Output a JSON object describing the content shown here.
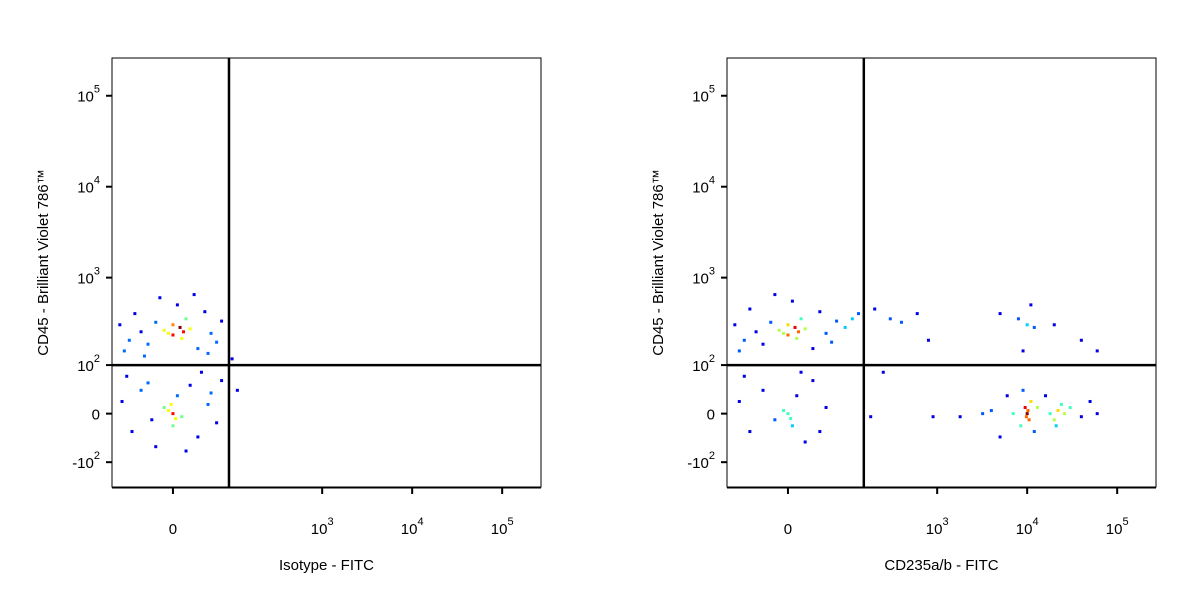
{
  "chart_data": [
    {
      "type": "scatter",
      "scale": "biexponential",
      "x_label": "Isotype - FITC",
      "y_label": "CD45 - Brilliant Violet 786™",
      "xlim": [
        -100,
        270000
      ],
      "ylim": [
        -200,
        260000
      ],
      "xticks": [
        0,
        {
          "value": 1000,
          "label": "10",
          "exponent": "3"
        },
        {
          "value": 10000,
          "label": "10",
          "exponent": "4"
        },
        {
          "value": 100000,
          "label": "10",
          "exponent": "5"
        }
      ],
      "yticks": [
        {
          "value": -100,
          "label": "-10",
          "exponent": "2"
        },
        0,
        {
          "value": 100,
          "label": "10",
          "exponent": "2"
        },
        {
          "value": 1000,
          "label": "10",
          "exponent": "3"
        },
        {
          "value": 10000,
          "label": "10",
          "exponent": "4"
        },
        {
          "value": 100000,
          "label": "10",
          "exponent": "5"
        }
      ],
      "gates": {
        "x": 87,
        "y": 100
      },
      "series": [
        {
          "x": [
            -80,
            -60,
            -50,
            -40,
            -30,
            -20,
            -10,
            0,
            0,
            5,
            10,
            15,
            20,
            30,
            40,
            50,
            60,
            70,
            -70,
            -15,
            25,
            -35,
            45,
            8,
            -5,
            12,
            -75,
            -55,
            -40,
            -25,
            -10,
            0,
            0,
            5,
            10,
            20,
            30,
            45,
            60,
            70,
            -65,
            -20,
            15,
            35,
            -5,
            3,
            -2,
            50,
            -30,
            95,
            110
          ],
          "y": [
            300,
            200,
            400,
            250,
            180,
            320,
            260,
            230,
            300,
            500,
            210,
            350,
            270,
            160,
            420,
            240,
            190,
            330,
            150,
            600,
            650,
            130,
            140,
            280,
            240,
            250,
            20,
            -30,
            40,
            -10,
            10,
            0,
            -20,
            30,
            -5,
            50,
            -40,
            15,
            -15,
            60,
            70,
            -60,
            -70,
            80,
            5,
            -8,
            15,
            35,
            55,
            120,
            40
          ]
        }
      ]
    },
    {
      "type": "scatter",
      "scale": "biexponential",
      "x_label": "CD235a/b - FITC",
      "y_label": "CD45 - Brilliant Violet 786™",
      "xlim": [
        -100,
        270000
      ],
      "ylim": [
        -200,
        260000
      ],
      "xticks": [
        0,
        {
          "value": 1000,
          "label": "10",
          "exponent": "3"
        },
        {
          "value": 10000,
          "label": "10",
          "exponent": "4"
        },
        {
          "value": 100000,
          "label": "10",
          "exponent": "5"
        }
      ],
      "yticks": [
        {
          "value": -100,
          "label": "-10",
          "exponent": "2"
        },
        0,
        {
          "value": 100,
          "label": "10",
          "exponent": "2"
        },
        {
          "value": 1000,
          "label": "10",
          "exponent": "3"
        },
        {
          "value": 10000,
          "label": "10",
          "exponent": "4"
        },
        {
          "value": 100000,
          "label": "10",
          "exponent": "5"
        }
      ],
      "gates": {
        "x": 150,
        "y": 100
      },
      "series": [
        {
          "x": [
            -80,
            -60,
            -50,
            -40,
            -30,
            -20,
            -10,
            0,
            0,
            5,
            10,
            15,
            20,
            30,
            40,
            50,
            60,
            70,
            -70,
            90,
            110,
            130,
            -5,
            8,
            12,
            -15,
            -70,
            -50,
            -30,
            -15,
            0,
            5,
            10,
            20,
            30,
            50,
            -60,
            -5,
            3,
            40,
            15,
            200,
            300,
            400,
            600,
            800,
            180,
            900,
            1800,
            3200,
            250,
            7000,
            8500,
            9500,
            10000,
            10500,
            11000,
            12000,
            9000,
            10200,
            9800,
            6000,
            13000,
            5000,
            4000,
            18000,
            20000,
            22000,
            24000,
            21000,
            26000,
            30000,
            40000,
            50000,
            60000,
            16000,
            5000,
            8000,
            10000,
            12000,
            20000,
            40000,
            60000,
            9000,
            11000
          ],
          "y": [
            300,
            200,
            450,
            250,
            180,
            320,
            260,
            230,
            300,
            550,
            210,
            350,
            270,
            160,
            420,
            240,
            190,
            330,
            150,
            280,
            350,
            400,
            240,
            280,
            250,
            650,
            20,
            -30,
            40,
            -10,
            0,
            -20,
            30,
            -50,
            60,
            10,
            70,
            5,
            -8,
            -30,
            80,
            450,
            350,
            320,
            400,
            200,
            -5,
            -5,
            -5,
            0,
            80,
            0,
            -20,
            10,
            0,
            -10,
            20,
            -30,
            40,
            5,
            -5,
            30,
            10,
            -40,
            5,
            0,
            -10,
            5,
            15,
            -20,
            0,
            10,
            -5,
            20,
            0,
            30,
            400,
            350,
            300,
            280,
            300,
            200,
            150,
            150,
            500
          ]
        }
      ]
    }
  ]
}
